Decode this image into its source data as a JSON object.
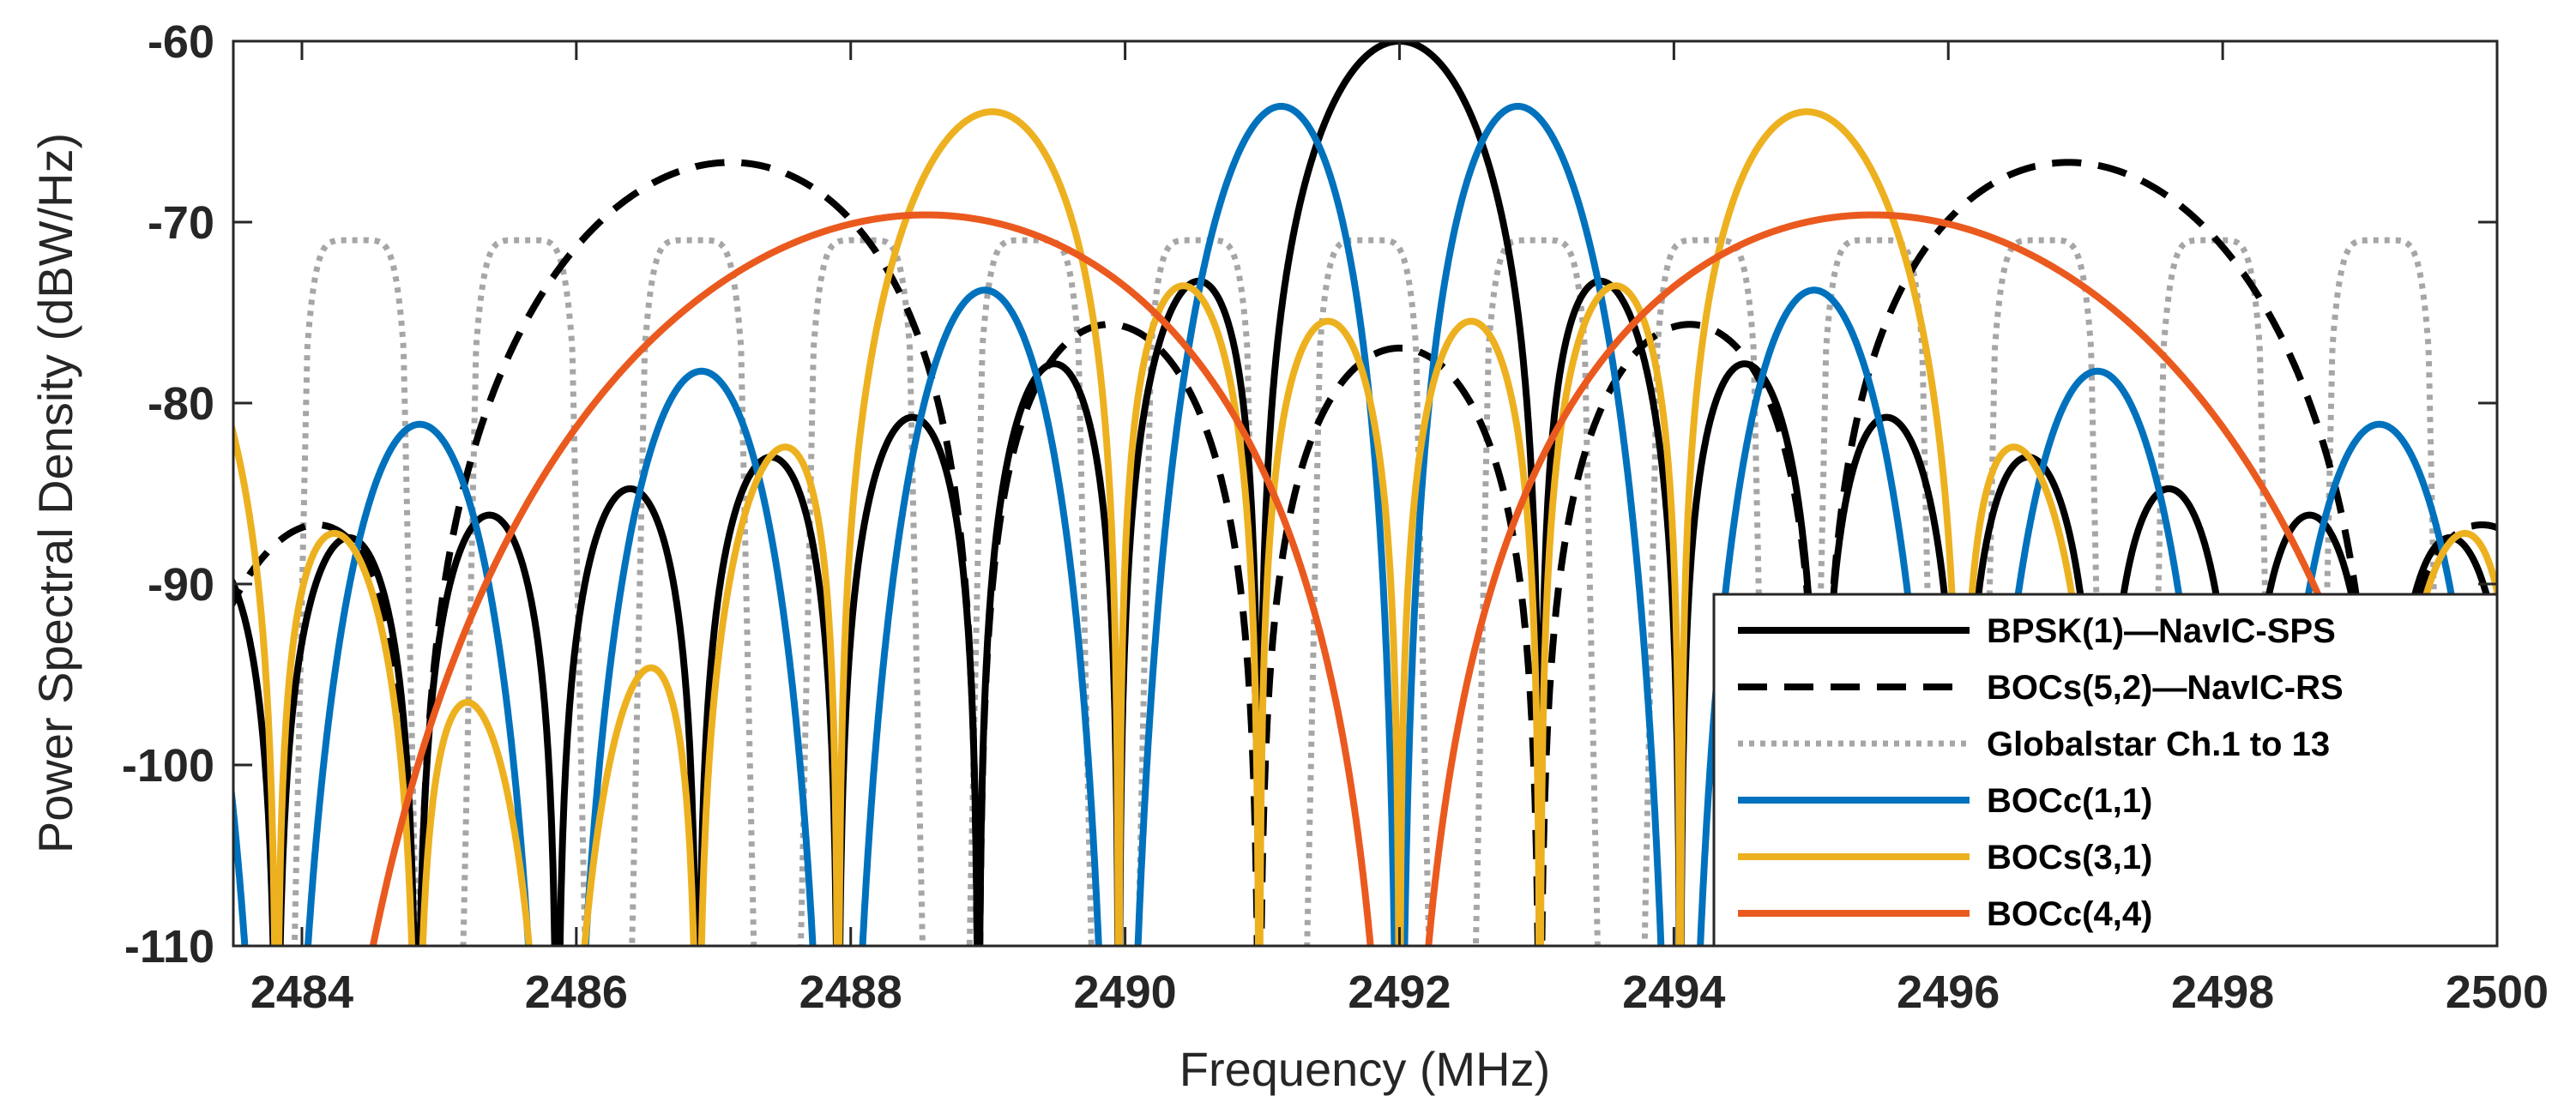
{
  "chart_data": {
    "type": "line",
    "title": "",
    "xlabel": "Frequency (MHz)",
    "ylabel": "Power Spectral Density (dBW/Hz)",
    "xlim": [
      2483.5,
      2500
    ],
    "ylim": [
      -110,
      -60
    ],
    "x_ticks": [
      2484,
      2486,
      2488,
      2490,
      2492,
      2494,
      2496,
      2498,
      2500
    ],
    "x_tick_labels": [
      "2484",
      "2486",
      "2488",
      "2490",
      "2492",
      "2494",
      "2496",
      "2498",
      "2500"
    ],
    "y_ticks": [
      -60,
      -70,
      -80,
      -90,
      -100,
      -110
    ],
    "y_tick_labels": [
      "-60",
      "-70",
      "-80",
      "-90",
      "-100",
      "-110"
    ],
    "grid": false,
    "legend_position": "bottom-right",
    "series": [
      {
        "name": "BPSK(1)—NavIC-SPS",
        "color": "#000000",
        "style": "solid",
        "model": {
          "kind": "bpsk",
          "fc": 2492.0,
          "fs": 1.023,
          "peak": -60
        }
      },
      {
        "name": "BOCs(5,2)—NavIC-RS",
        "color": "#000000",
        "style": "dashed",
        "model": {
          "kind": "boc",
          "phase": "sine",
          "fc": 2492.0,
          "fsc": 5.115,
          "fs": 2.046,
          "peak": -66.7
        }
      },
      {
        "name": "Globalstar Ch.1 to 13",
        "color": "#a6a6a6",
        "style": "dotted",
        "model": {
          "kind": "multi",
          "centers": [
            2484.39,
            2485.62,
            2486.85,
            2488.08,
            2489.31,
            2490.54,
            2491.77,
            2493.0,
            2494.23,
            2495.46,
            2496.69,
            2497.92,
            2499.15
          ],
          "width": 0.9,
          "peak": -71
        }
      },
      {
        "name": "BOCc(1,1)",
        "color": "#0072bd",
        "style": "solid",
        "model": {
          "kind": "boc",
          "phase": "cosine",
          "fc": 2492.0,
          "fsc": 1.023,
          "fs": 1.023,
          "peak": -63.6
        }
      },
      {
        "name": "BOCs(3,1)",
        "color": "#edb120",
        "style": "solid",
        "model": {
          "kind": "boc",
          "phase": "sine",
          "fc": 2492.0,
          "fsc": 3.069,
          "fs": 1.023,
          "peak": -63.9
        }
      },
      {
        "name": "BOCc(4,4)",
        "color": "#ea5a1f",
        "style": "solid",
        "model": {
          "kind": "boc",
          "phase": "cosine",
          "fc": 2492.0,
          "fsc": 4.092,
          "fs": 4.092,
          "peak": -69.6
        }
      }
    ]
  }
}
